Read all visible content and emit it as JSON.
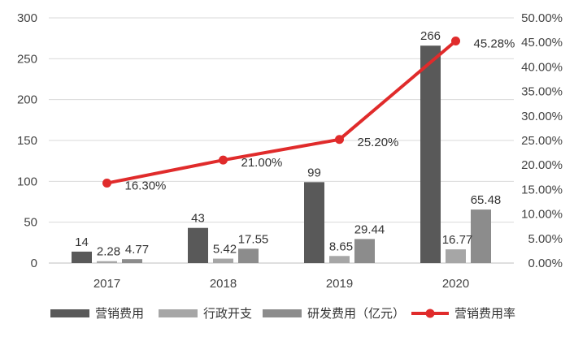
{
  "chart_data": {
    "type": "bar",
    "categories": [
      "2017",
      "2018",
      "2019",
      "2020"
    ],
    "series": [
      {
        "name": "营销费用",
        "kind": "bar",
        "axis": "left",
        "color": "#595959",
        "values": [
          14,
          43,
          99,
          266
        ],
        "labels": [
          "14",
          "43",
          "99",
          "266"
        ]
      },
      {
        "name": "行政开支",
        "kind": "bar",
        "axis": "left",
        "color": "#a6a6a6",
        "values": [
          2.28,
          5.42,
          8.65,
          16.77
        ],
        "labels": [
          "2.28",
          "5.42",
          "8.65",
          "16.77"
        ]
      },
      {
        "name": "研发费用（亿元）",
        "kind": "bar",
        "axis": "left",
        "color": "#8c8c8c",
        "values": [
          4.77,
          17.55,
          29.44,
          65.48
        ],
        "labels": [
          "4.77",
          "17.55",
          "29.44",
          "65.48"
        ]
      },
      {
        "name": "营销费用率",
        "kind": "line",
        "axis": "right",
        "color": "#e02b2b",
        "values": [
          16.3,
          21.0,
          25.2,
          45.28
        ],
        "labels": [
          "16.30%",
          "21.00%",
          "25.20%",
          "45.28%"
        ]
      }
    ],
    "y_left": {
      "ylim": [
        0,
        300
      ],
      "ticks": [
        0,
        50,
        100,
        150,
        200,
        250,
        300
      ]
    },
    "y_right": {
      "ylim": [
        0,
        50
      ],
      "ticks": [
        "0.00%",
        "5.00%",
        "10.00%",
        "15.00%",
        "20.00%",
        "25.00%",
        "30.00%",
        "35.00%",
        "40.00%",
        "45.00%",
        "50.00%"
      ]
    },
    "grid": "horizontal",
    "legend_position": "bottom"
  }
}
